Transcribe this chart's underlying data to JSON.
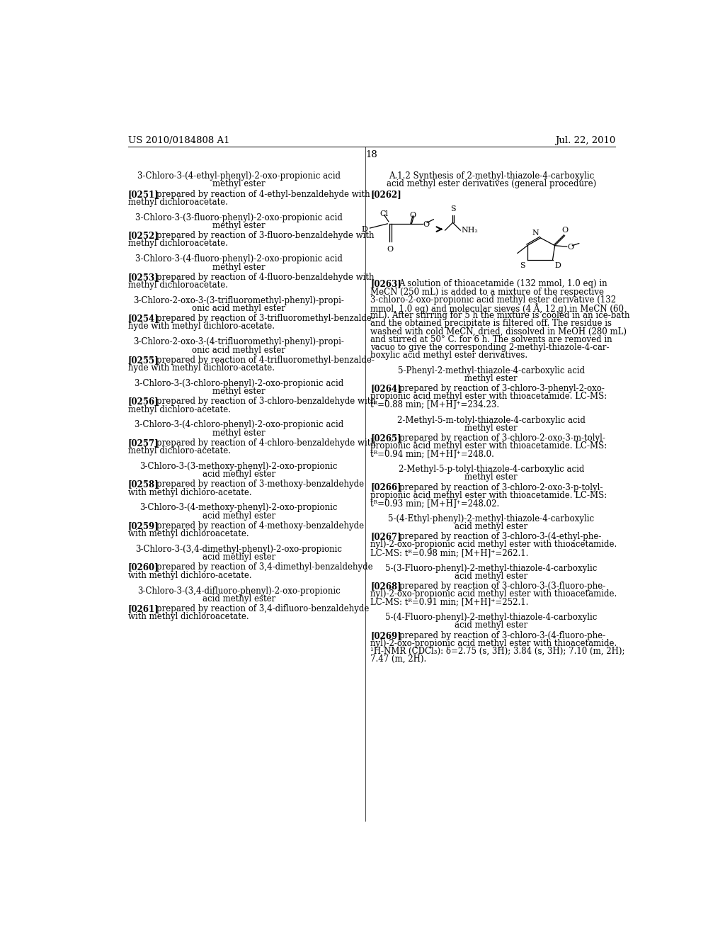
{
  "header_left": "US 2010/0184808 A1",
  "header_right": "Jul. 22, 2010",
  "page_number": "18",
  "background_color": "#ffffff",
  "text_color": "#000000",
  "left_titles": [
    "3-Chloro-3-(4-ethyl-phenyl)-2-oxo-propionic acid\nmethyl ester",
    "3-Chloro-3-(3-fluoro-phenyl)-2-oxo-propionic acid\nmethyl ester",
    "3-Chloro-3-(4-fluoro-phenyl)-2-oxo-propionic acid\nmethyl ester",
    "3-Chloro-2-oxo-3-(3-trifluoromethyl-phenyl)-propi-\nonic acid methyl ester",
    "3-Chloro-2-oxo-3-(4-trifluoromethyl-phenyl)-propi-\nonic acid methyl ester",
    "3-Chloro-3-(3-chloro-phenyl)-2-oxo-propionic acid\nmethyl ester",
    "3-Chloro-3-(4-chloro-phenyl)-2-oxo-propionic acid\nmethyl ester",
    "3-Chloro-3-(3-methoxy-phenyl)-2-oxo-propionic\nacid methyl ester",
    "3-Chloro-3-(4-methoxy-phenyl)-2-oxo-propionic\nacid methyl ester",
    "3-Chloro-3-(3,4-dimethyl-phenyl)-2-oxo-propionic\nacid methyl ester",
    "3-Chloro-3-(3,4-difluoro-phenyl)-2-oxo-propionic\nacid methyl ester"
  ],
  "left_tags": [
    "[0251]",
    "[0252]",
    "[0253]",
    "[0254]",
    "[0255]",
    "[0256]",
    "[0257]",
    "[0258]",
    "[0259]",
    "[0260]",
    "[0261]"
  ],
  "left_paras": [
    "prepared by reaction of 4-ethyl-benzaldehyde with\nmethyl dichloroacetate.",
    "prepared by reaction of 3-fluoro-benzaldehyde with\nmethyl dichloroacetate.",
    "prepared by reaction of 4-fluoro-benzaldehyde with\nmethyl dichloroacetate.",
    "prepared by reaction of 3-trifluoromethyl-benzalde-\nhyde with methyl dichloro-acetate.",
    "prepared by reaction of 4-trifluoromethyl-benzalde-\nhyde with methyl dichloro-acetate.",
    "prepared by reaction of 3-chloro-benzaldehyde with\nmethyl dichloro-acetate.",
    "prepared by reaction of 4-chloro-benzaldehyde with\nmethyl dichloro-acetate.",
    "prepared by reaction of 3-methoxy-benzaldehyde\nwith methyl dichloro-acetate.",
    "prepared by reaction of 4-methoxy-benzaldehyde\nwith methyl dichloroacetate.",
    "prepared by reaction of 3,4-dimethyl-benzaldehyde\nwith methyl dichloro-acetate.",
    "prepared by reaction of 3,4-difluoro-benzaldehyde\nwith methyl dichloroacetate."
  ],
  "right_section_title": "A.1.2 Synthesis of 2-methyl-thiazole-4-carboxylic\nacid methyl ester derivatives (general procedure)",
  "right_tag_0262": "[0262]",
  "right_tag_0263": "[0263]",
  "right_para_0263": "A solution of thioacetamide (132 mmol, 1.0 eq) in\nMeCN (250 mL) is added to a mixture of the respective\n3-chloro-2-oxo-propionic acid methyl ester derivative (132\nmmol, 1.0 eq) and molecular sieves (4 Å, 12 g) in MeCN (60\nmL). After stirring for 5 h the mixture is cooled in an ice-bath\nand the obtained precipitate is filtered off. The residue is\nwashed with cold MeCN, dried, dissolved in MeOH (280 mL)\nand stirred at 50° C. for 6 h. The solvents are removed in\nvacuo to give the corresponding 2-methyl-thiazole-4-car-\nboxylic acid methyl ester derivatives.",
  "right_titles": [
    "5-Phenyl-2-methyl-thiazole-4-carboxylic acid\nmethyl ester",
    "2-Methyl-5-m-tolyl-thiazole-4-carboxylic acid\nmethyl ester",
    "2-Methyl-5-p-tolyl-thiazole-4-carboxylic acid\nmethyl ester",
    "5-(4-Ethyl-phenyl)-2-methyl-thiazole-4-carboxylic\nacid methyl ester",
    "5-(3-Fluoro-phenyl)-2-methyl-thiazole-4-carboxylic\nacid methyl ester",
    "5-(4-Fluoro-phenyl)-2-methyl-thiazole-4-carboxylic\nacid methyl ester"
  ],
  "right_tags": [
    "[0264]",
    "[0265]",
    "[0266]",
    "[0267]",
    "[0268]",
    "[0269]"
  ],
  "right_paras": [
    "prepared by reaction of 3-chloro-3-phenyl-2-oxo-\npropionic acid methyl ester with thioacetamide. LC-MS:\ntᴿ=0.88 min; [M+H]⁺=234.23.",
    "prepared by reaction of 3-chloro-2-oxo-3-m-tolyl-\npropionic acid methyl ester with thioacetamide. LC-MS:\ntᴿ=0.94 min; [M+H]⁺=248.0.",
    "prepared by reaction of 3-chloro-2-oxo-3-p-tolyl-\npropionic acid methyl ester with thioacetamide. LC-MS:\ntᴿ=0.93 min; [M+H]⁺=248.02.",
    "prepared by reaction of 3-chloro-3-(4-ethyl-phe-\nnyl)-2-oxo-propionic acid methyl ester with thioacetamide.\nLC-MS: tᴿ=0.98 min; [M+H]⁺=262.1.",
    "prepared by reaction of 3-chloro-3-(3-fluoro-phe-\nnyl)-2-oxo-propionic acid methyl ester with thioacetamide.\nLC-MS: tᴿ=0.91 min; [M+H]⁺=252.1.",
    "prepared by reaction of 3-chloro-3-(4-fluoro-phe-\nnyl)-2-oxo-propionic acid methyl ester with thioacetamide.\n¹H-NMR (CDCl₃): δ=2.75 (s, 3H); 3.84 (s, 3H); 7.10 (m, 2H);\n7.47 (m, 2H)."
  ]
}
